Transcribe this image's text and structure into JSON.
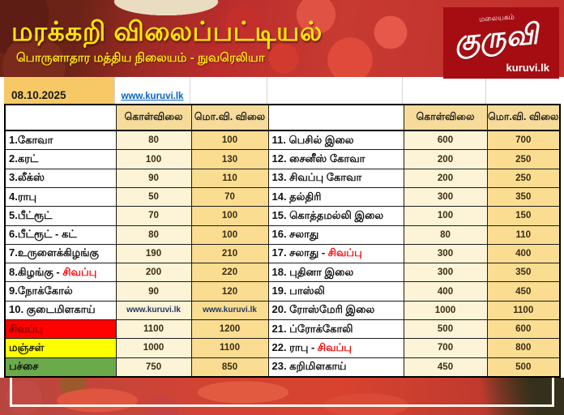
{
  "header": {
    "title": "மரக்கறி விலைப்பட்டியல்",
    "subtitle": "பொருளாதார மத்திய நிலையம் - நுவரெலியா"
  },
  "logo": {
    "tagline": "மலையகம்",
    "name": "குருவி",
    "site": "kuruvi.lk"
  },
  "meta": {
    "date": "08.10.2025",
    "website_link": "www.kuruvi.lk"
  },
  "columns": {
    "wholesale": "கொள்விலை",
    "retail": "மொ.வி. விலை"
  },
  "left_rows": [
    {
      "label": "1.கோவா",
      "buy": "80",
      "retail": "100"
    },
    {
      "label": "2.கரட்",
      "buy": "100",
      "retail": "130"
    },
    {
      "label": "3.லீக்ஸ்",
      "buy": "90",
      "retail": "110"
    },
    {
      "label": "4.ராபு",
      "buy": "50",
      "retail": "70"
    },
    {
      "label": "5.பீட்ரூட்",
      "buy": "70",
      "retail": "100"
    },
    {
      "label": "6.பீட்ரூட் - கட்",
      "buy": "80",
      "retail": "100"
    },
    {
      "label": "7.உருளைக்கிழங்கு",
      "buy": "190",
      "retail": "210"
    },
    {
      "label": "8.கிழங்கு - ",
      "accent": "சிவப்பு",
      "buy": "200",
      "retail": "220"
    },
    {
      "label": "9.நோக்கோல்",
      "buy": "90",
      "retail": "120"
    },
    {
      "label": "10. குடைமிளகாய்",
      "buy": "www.kuruvi.lk",
      "retail": "www.kuruvi.lk",
      "link_values": true
    },
    {
      "label": "சிவப்பு",
      "bg": "red",
      "buy": "1100",
      "retail": "1200"
    },
    {
      "label": "மஞ்சள்",
      "bg": "yellow",
      "buy": "1000",
      "retail": "1100"
    },
    {
      "label": "பச்சை",
      "bg": "green",
      "buy": "750",
      "retail": "850"
    }
  ],
  "right_rows": [
    {
      "label": "11. பெசில் இலை",
      "buy": "600",
      "retail": "700"
    },
    {
      "label": "12. சைனீஸ் கோவா",
      "buy": "200",
      "retail": "250"
    },
    {
      "label": "13. சிவப்பு கோவா",
      "buy": "200",
      "retail": "250"
    },
    {
      "label": "14. தல்திரி",
      "buy": "300",
      "retail": "350"
    },
    {
      "label": "15. கொத்தமல்லி இலை",
      "buy": "100",
      "retail": "150"
    },
    {
      "label": "16. சலாது",
      "buy": "80",
      "retail": "110"
    },
    {
      "label": "17. சலாது - ",
      "accent": "சிவப்பு",
      "buy": "300",
      "retail": "400"
    },
    {
      "label": "18. புதினா இலை",
      "buy": "300",
      "retail": "350"
    },
    {
      "label": "19. பாஸ்லி",
      "buy": "400",
      "retail": "450"
    },
    {
      "label": "20. ரோஸ்மேரி இலை",
      "buy": "1000",
      "retail": "1100"
    },
    {
      "label": "21. ப்ரோக்கோலி",
      "buy": "500",
      "retail": "600"
    },
    {
      "label": "22. ராபு - ",
      "accent": "சிவப்பு",
      "buy": "700",
      "retail": "800"
    },
    {
      "label": "23. கறிமிளகாய்",
      "buy": "450",
      "retail": "500"
    }
  ],
  "colors": {
    "band_red": "#b5232b",
    "logo_red": "#a50d12",
    "title_yellow": "#ffe607",
    "date_cell": "#f7c966",
    "header_cell": "#f7db9a",
    "wholesale_cell": "#fdf3d6",
    "retail_cell": "#fbdd92",
    "accent_red": "#fe0000",
    "row_red": "#ff0100",
    "row_yellow": "#ffff00",
    "row_green": "#6aaa4b",
    "link_blue": "#0563c1"
  }
}
